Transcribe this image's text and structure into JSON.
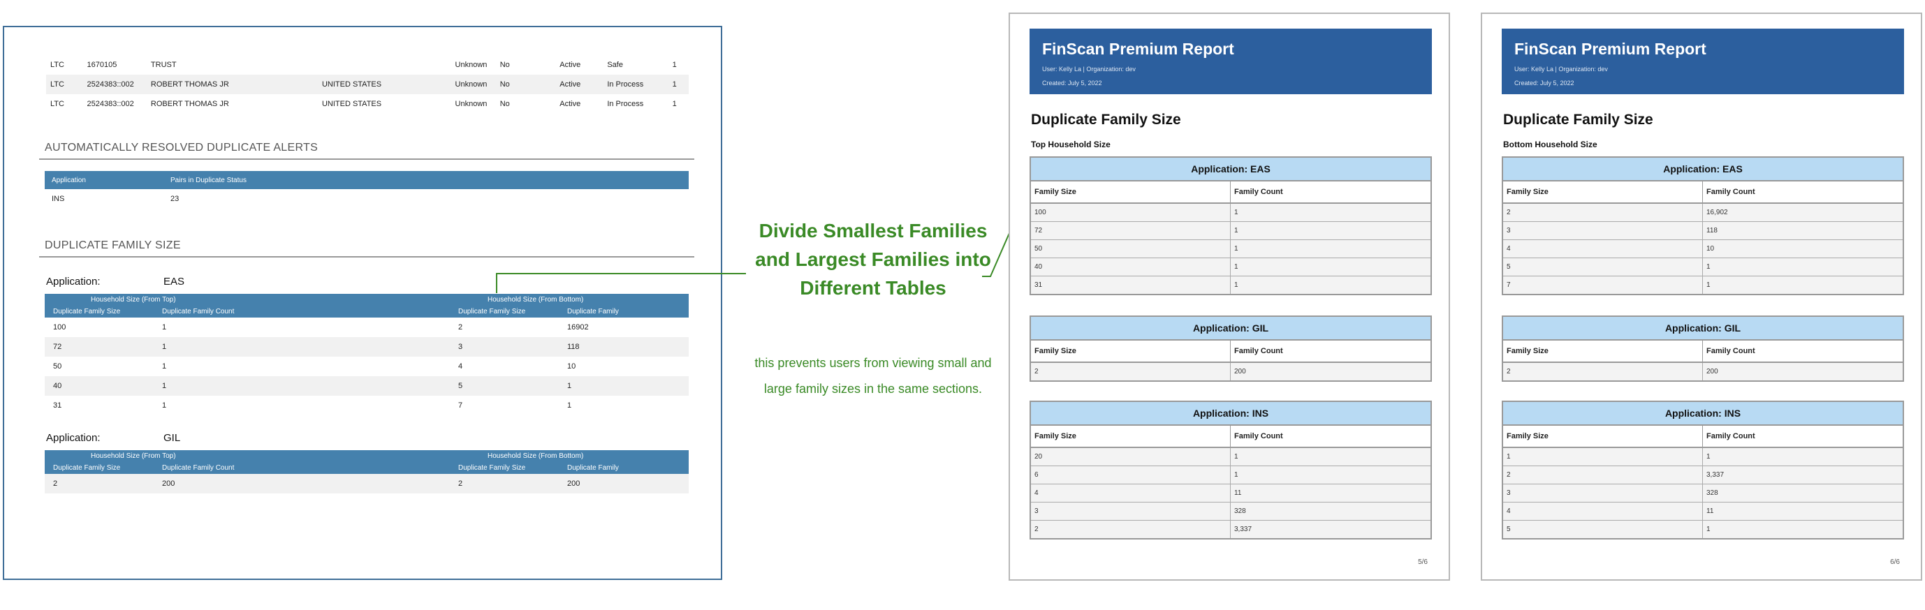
{
  "old_report": {
    "top_rows": [
      [
        "LTC",
        "1670105",
        "TRUST",
        "",
        "Unknown",
        "No",
        "Active",
        "Safe",
        "1"
      ],
      [
        "LTC",
        "2524383::002",
        "ROBERT THOMAS JR",
        "UNITED STATES",
        "Unknown",
        "No",
        "Active",
        "In Process",
        "1"
      ],
      [
        "LTC",
        "2524383::002",
        "ROBERT THOMAS JR",
        "UNITED STATES",
        "Unknown",
        "No",
        "Active",
        "In Process",
        "1"
      ]
    ],
    "resolved_title": "AUTOMATICALLY RESOLVED DUPLICATE ALERTS",
    "resolved_table": {
      "headers": [
        "Application",
        "Pairs in Duplicate Status"
      ],
      "rows": [
        [
          "INS",
          "23"
        ]
      ]
    },
    "family_title": "DUPLICATE FAMILY SIZE",
    "application_label": "Application:",
    "household_top": "Household Size (From Top)",
    "household_bottom": "Household Size (From Bottom)",
    "col_headers": [
      "Duplicate Family Size",
      "Duplicate Family Count",
      "Duplicate Family Size",
      "Duplicate Family"
    ],
    "apps": [
      {
        "name": "EAS",
        "rows": [
          [
            "100",
            "1",
            "2",
            "16902"
          ],
          [
            "72",
            "1",
            "3",
            "118"
          ],
          [
            "50",
            "1",
            "4",
            "10"
          ],
          [
            "40",
            "1",
            "5",
            "1"
          ],
          [
            "31",
            "1",
            "7",
            "1"
          ]
        ]
      },
      {
        "name": "GIL",
        "rows": [
          [
            "2",
            "200",
            "2",
            "200"
          ]
        ]
      }
    ]
  },
  "annotation": {
    "title": "Divide Smallest Families and Largest Families into Different Tables",
    "body": "this prevents users from viewing small and large family sizes in the same sections."
  },
  "colors": {
    "annotation_green": "#3a8a26",
    "header_blue": "#2c5f9e",
    "caption_blue": "#b8daf3",
    "old_bar_blue": "#4581ad"
  },
  "pages": [
    {
      "report_title": "FinScan Premium Report",
      "user_line": "User: Kelly La | Organization: dev",
      "created_line": "Created: July 5, 2022",
      "section_title": "Duplicate Family Size",
      "subtitle": "Top Household Size",
      "page_number": "5/6",
      "tables": [
        {
          "caption": "Application: EAS",
          "headers": [
            "Family Size",
            "Family Count"
          ],
          "rows": [
            [
              "100",
              "1"
            ],
            [
              "72",
              "1"
            ],
            [
              "50",
              "1"
            ],
            [
              "40",
              "1"
            ],
            [
              "31",
              "1"
            ]
          ]
        },
        {
          "caption": "Application: GIL",
          "headers": [
            "Family Size",
            "Family Count"
          ],
          "rows": [
            [
              "2",
              "200"
            ]
          ]
        },
        {
          "caption": "Application: INS",
          "headers": [
            "Family Size",
            "Family Count"
          ],
          "rows": [
            [
              "20",
              "1"
            ],
            [
              "6",
              "1"
            ],
            [
              "4",
              "11"
            ],
            [
              "3",
              "328"
            ],
            [
              "2",
              "3,337"
            ]
          ]
        }
      ]
    },
    {
      "report_title": "FinScan Premium Report",
      "user_line": "User: Kelly La | Organization: dev",
      "created_line": "Created: July 5, 2022",
      "section_title": "Duplicate Family Size",
      "subtitle": "Bottom Household Size",
      "page_number": "6/6",
      "tables": [
        {
          "caption": "Application: EAS",
          "headers": [
            "Family Size",
            "Family Count"
          ],
          "rows": [
            [
              "2",
              "16,902"
            ],
            [
              "3",
              "118"
            ],
            [
              "4",
              "10"
            ],
            [
              "5",
              "1"
            ],
            [
              "7",
              "1"
            ]
          ]
        },
        {
          "caption": "Application: GIL",
          "headers": [
            "Family Size",
            "Family Count"
          ],
          "rows": [
            [
              "2",
              "200"
            ]
          ]
        },
        {
          "caption": "Application: INS",
          "headers": [
            "Family Size",
            "Family Count"
          ],
          "rows": [
            [
              "1",
              "1"
            ],
            [
              "2",
              "3,337"
            ],
            [
              "3",
              "328"
            ],
            [
              "4",
              "11"
            ],
            [
              "5",
              "1"
            ]
          ]
        }
      ]
    }
  ]
}
